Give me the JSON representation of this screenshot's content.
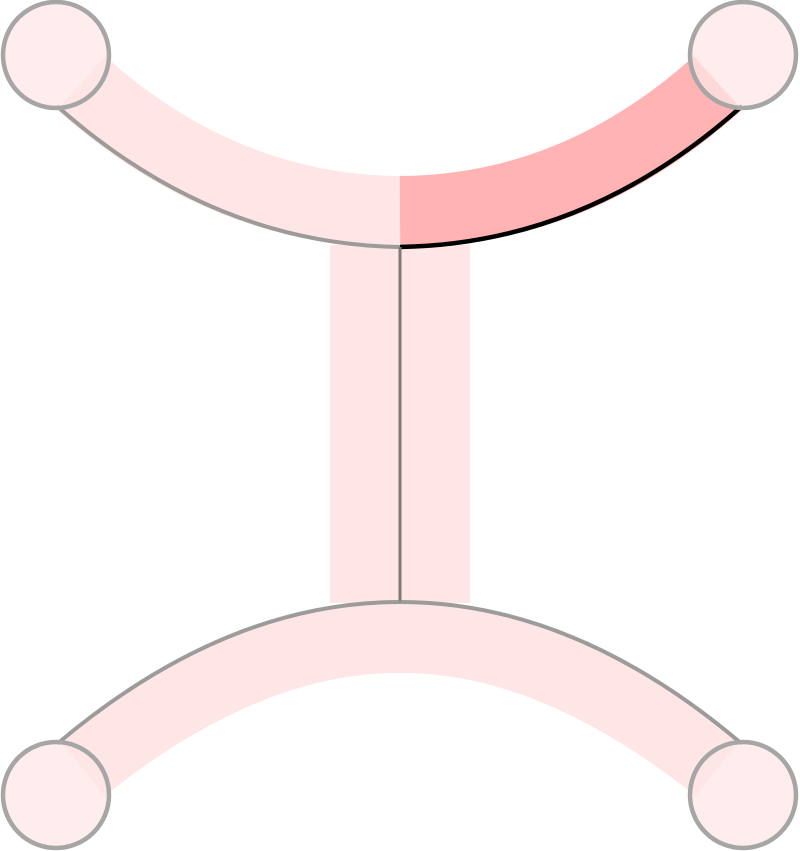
{
  "diagram": {
    "description_free": true,
    "colors": {
      "background": "#ffffff",
      "band_light": "#ffe6e6",
      "band_highlight": "#ffb3b3",
      "circle_fill": "#ffe6e6",
      "circle_stroke": "#a6a6a6",
      "edge_muted": "#8c8c8c",
      "edge_active": "#000000",
      "stem": "#7a7a7a"
    },
    "nodes": [
      {
        "id": "top-left"
      },
      {
        "id": "top-right"
      },
      {
        "id": "bottom-left"
      },
      {
        "id": "bottom-right"
      }
    ],
    "segments": [
      {
        "id": "top-arc-left",
        "state": "muted"
      },
      {
        "id": "top-arc-right",
        "state": "active"
      },
      {
        "id": "stem",
        "state": "muted"
      },
      {
        "id": "bottom-arc",
        "state": "muted"
      }
    ]
  }
}
